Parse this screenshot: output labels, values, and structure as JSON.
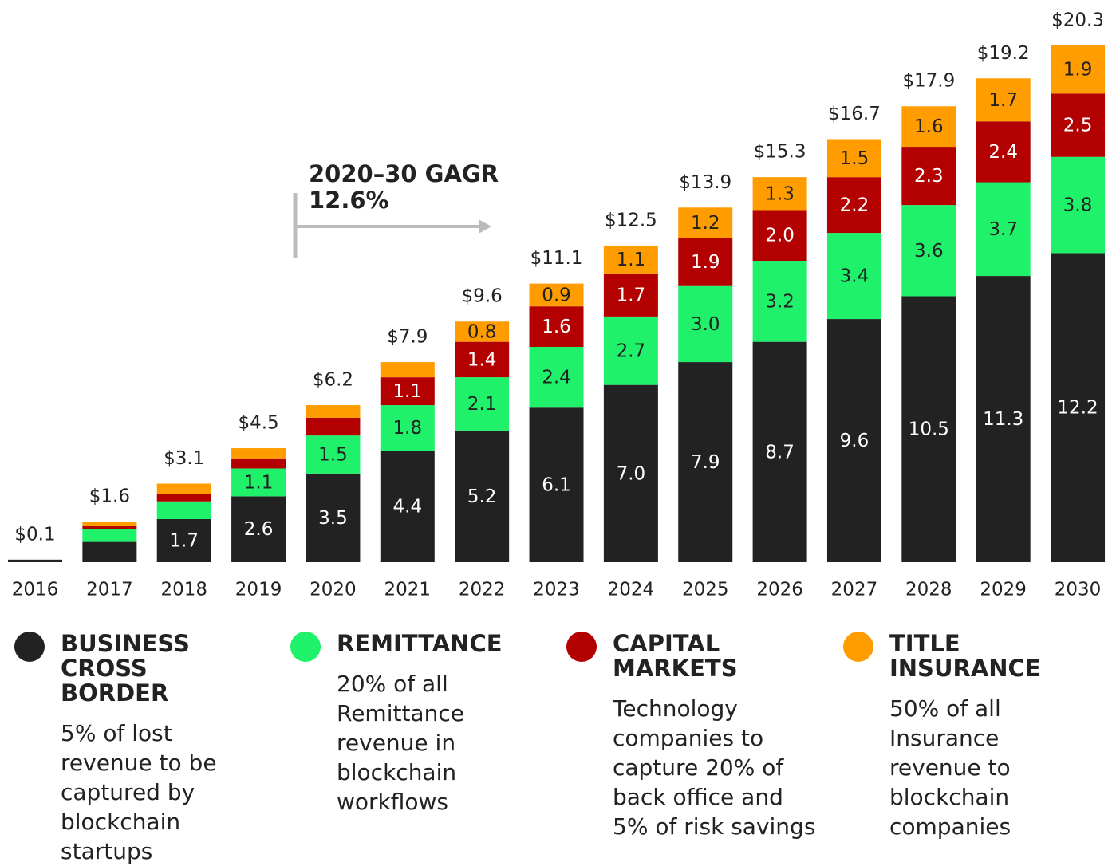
{
  "chart_data": {
    "type": "stacked_bar",
    "annotation": [
      "2020–30 GAGR",
      "12.6%"
    ],
    "categories": [
      "2016",
      "2017",
      "2018",
      "2019",
      "2020",
      "2021",
      "2022",
      "2023",
      "2024",
      "2025",
      "2026",
      "2027",
      "2028",
      "2029",
      "2030"
    ],
    "totals": [
      0.1,
      1.6,
      3.1,
      4.5,
      6.2,
      7.9,
      9.6,
      11.1,
      12.5,
      13.9,
      15.3,
      16.7,
      17.9,
      19.2,
      20.3
    ],
    "total_labels": [
      "$0.1",
      "$1.6",
      "$3.1",
      "$4.5",
      "$6.2",
      "$7.9",
      "$9.6",
      "$11.1",
      "$12.5",
      "$13.9",
      "$15.3",
      "$16.7",
      "$17.9",
      "$19.2",
      "$20.3"
    ],
    "series": [
      {
        "name": "BUSINESS CROSS BORDER",
        "description": "5% of lost revenue to be captured by blockchain startups",
        "color": "#222222",
        "values": [
          0.1,
          0.8,
          1.7,
          2.6,
          3.5,
          4.4,
          5.2,
          6.1,
          7.0,
          7.9,
          8.7,
          9.6,
          10.5,
          11.3,
          12.2
        ],
        "value_labels": [
          null,
          null,
          "1.7",
          "2.6",
          "3.5",
          "4.4",
          "5.2",
          "6.1",
          "7.0",
          "7.9",
          "8.7",
          "9.6",
          "10.5",
          "11.3",
          "12.2"
        ]
      },
      {
        "name": "REMITTANCE",
        "description": "20% of all Remittance revenue in blockchain workflows",
        "color": "#1ff26a",
        "values": [
          0,
          0.5,
          0.7,
          1.1,
          1.5,
          1.8,
          2.1,
          2.4,
          2.7,
          3.0,
          3.2,
          3.4,
          3.6,
          3.7,
          3.8
        ],
        "value_labels": [
          null,
          null,
          null,
          "1.1",
          "1.5",
          "1.8",
          "2.1",
          "2.4",
          "2.7",
          "3.0",
          "3.2",
          "3.4",
          "3.6",
          "3.7",
          "3.8"
        ]
      },
      {
        "name": "CAPITAL MARKETS",
        "description": "Technology companies to capture 20% of back office and 5% of risk savings",
        "color": "#b30000",
        "values": [
          0,
          0.15,
          0.3,
          0.4,
          0.7,
          1.1,
          1.4,
          1.6,
          1.7,
          1.9,
          2.0,
          2.2,
          2.3,
          2.4,
          2.5
        ],
        "value_labels": [
          null,
          null,
          null,
          null,
          null,
          "1.1",
          "1.4",
          "1.6",
          "1.7",
          "1.9",
          "2.0",
          "2.2",
          "2.3",
          "2.4",
          "2.5"
        ]
      },
      {
        "name": "TITLE INSURANCE",
        "description": "50% of all Insurance revenue to blockchain companies",
        "color": "#ff9c00",
        "values": [
          0,
          0.15,
          0.4,
          0.4,
          0.5,
          0.6,
          0.8,
          0.9,
          1.1,
          1.2,
          1.3,
          1.5,
          1.6,
          1.7,
          1.9
        ],
        "value_labels": [
          null,
          null,
          null,
          null,
          null,
          null,
          "0.8",
          "0.9",
          "1.1",
          "1.2",
          "1.3",
          "1.5",
          "1.6",
          "1.7",
          "1.9"
        ]
      }
    ]
  }
}
